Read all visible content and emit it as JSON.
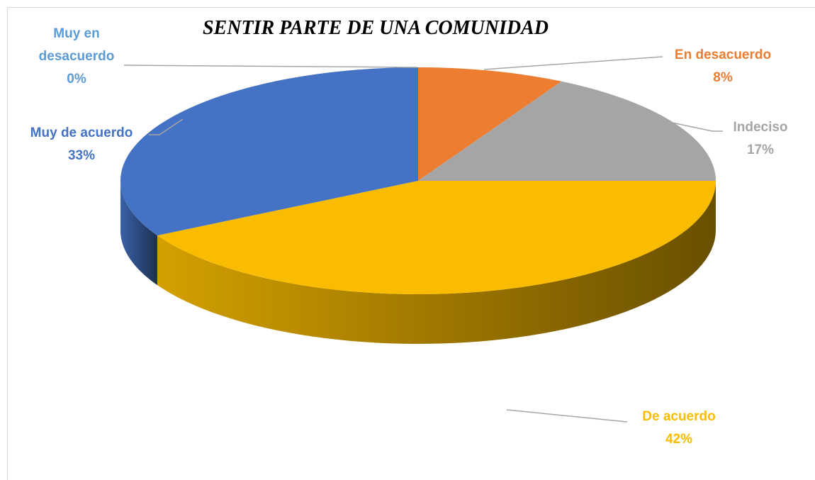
{
  "chart_data": {
    "type": "pie",
    "title": "SENTIR PARTE DE UNA COMUNIDAD",
    "categories": [
      "Muy en desacuerdo",
      "En desacuerdo",
      "Indeciso",
      "De acuerdo",
      "Muy de acuerdo"
    ],
    "values": [
      0,
      8,
      17,
      42,
      33
    ],
    "value_labels": [
      "0%",
      "8%",
      "17%",
      "42%",
      "33%"
    ],
    "colors": [
      "#5b9bd5",
      "#ed7d31",
      "#a5a5a5",
      "#f9bc00",
      "#4472c4"
    ]
  }
}
